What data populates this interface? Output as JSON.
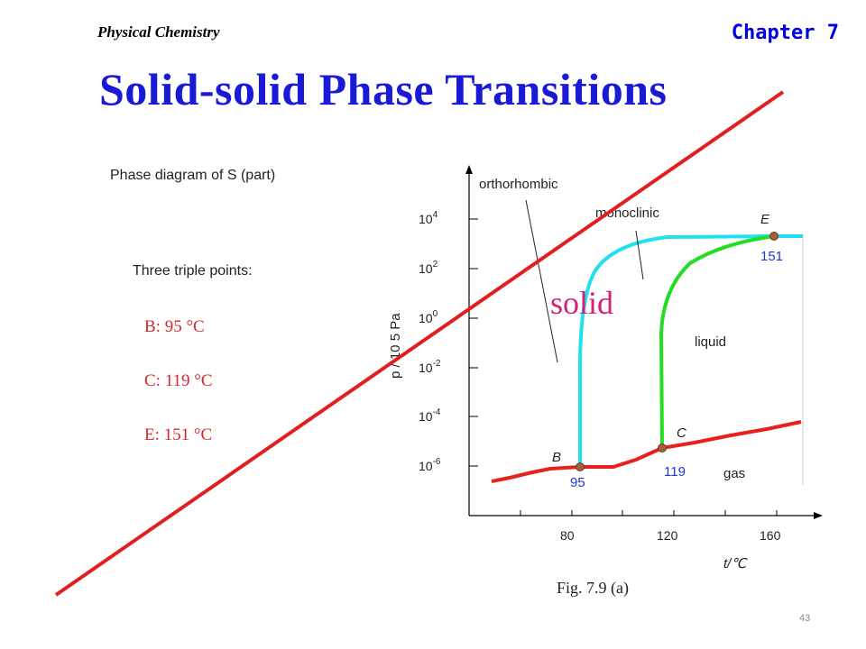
{
  "header": {
    "course": "Physical Chemistry",
    "chapter": "Chapter 7"
  },
  "title": "Solid-solid Phase Transitions",
  "subtitle": "Phase diagram of S (part)",
  "triple_points": {
    "heading": "Three triple points:",
    "items": [
      {
        "label": "B: 95 °C"
      },
      {
        "label": "C: 119 °C"
      },
      {
        "label": "E: 151 °C"
      }
    ]
  },
  "diagram": {
    "y_axis_label": "p / 10 5 Pa",
    "y_ticks": [
      {
        "base": "10",
        "exp": "4"
      },
      {
        "base": "10",
        "exp": "2"
      },
      {
        "base": "10",
        "exp": "0"
      },
      {
        "base": "10",
        "exp": "-2"
      },
      {
        "base": "10",
        "exp": "-4"
      },
      {
        "base": "10",
        "exp": "-6"
      }
    ],
    "x_ticks": [
      "80",
      "120",
      "160"
    ],
    "x_axis_label": "t/℃",
    "regions": {
      "orthorhombic": "orthorhombic",
      "monoclinic": "monoclinic",
      "solid": "solid",
      "liquid": "liquid",
      "gas": "gas"
    },
    "points": {
      "B": {
        "name": "B",
        "value": "95"
      },
      "C": {
        "name": "C",
        "value": "119"
      },
      "E": {
        "name": "E",
        "value": "151"
      }
    },
    "colors": {
      "sublimation_vaporization": "#e8201e",
      "ortho_mono_boundary": "#1fe0f0",
      "melting_line": "#22dd22",
      "point": "#a06040",
      "axis": "#000000",
      "overlay_line": "#e02020"
    }
  },
  "caption": "Fig. 7.9 (a)",
  "page_number": "43"
}
